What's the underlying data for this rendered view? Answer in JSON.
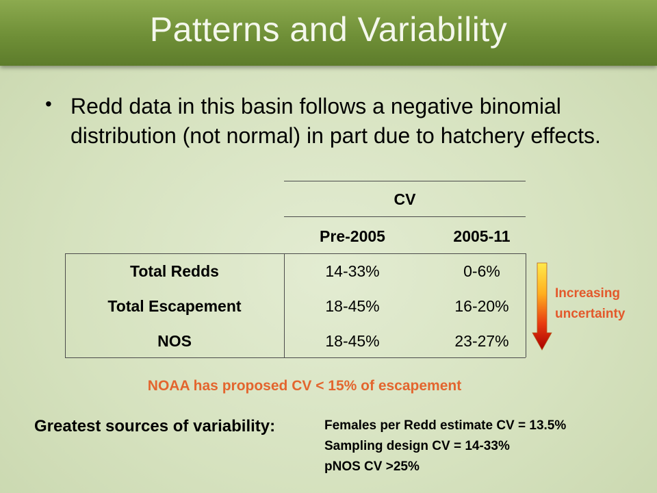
{
  "slide": {
    "title": "Patterns and Variability",
    "bullet": "Redd data in this basin follows a negative binomial distribution (not normal) in part due to hatchery effects."
  },
  "table": {
    "group_header": "CV",
    "columns": [
      "Pre-2005",
      "2005-11"
    ],
    "rows": [
      {
        "label": "Total Redds",
        "values": [
          "14-33%",
          "0-6%"
        ]
      },
      {
        "label": "Total Escapement",
        "values": [
          "18-45%",
          "16-20%"
        ]
      },
      {
        "label": "NOS",
        "values": [
          "18-45%",
          "23-27%"
        ]
      }
    ]
  },
  "uncertainty": {
    "line1": "Increasing",
    "line2": "uncertainty",
    "color": "#e3582b"
  },
  "noaa_note": "NOAA has proposed CV < 15% of escapement",
  "sources": {
    "label": "Greatest sources of variability:",
    "items": [
      "Females per Redd estimate CV  = 13.5%",
      "Sampling design CV = 14-33%",
      "pNOS CV  >25%"
    ]
  }
}
